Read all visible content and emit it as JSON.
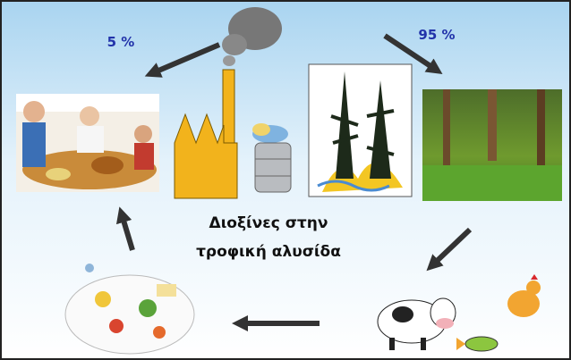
{
  "labels": {
    "left_share": "5 %",
    "right_share": "95 %"
  },
  "title": {
    "line1": "Διοξίνες στην",
    "line2": "τροφική αλυσίδα"
  }
}
